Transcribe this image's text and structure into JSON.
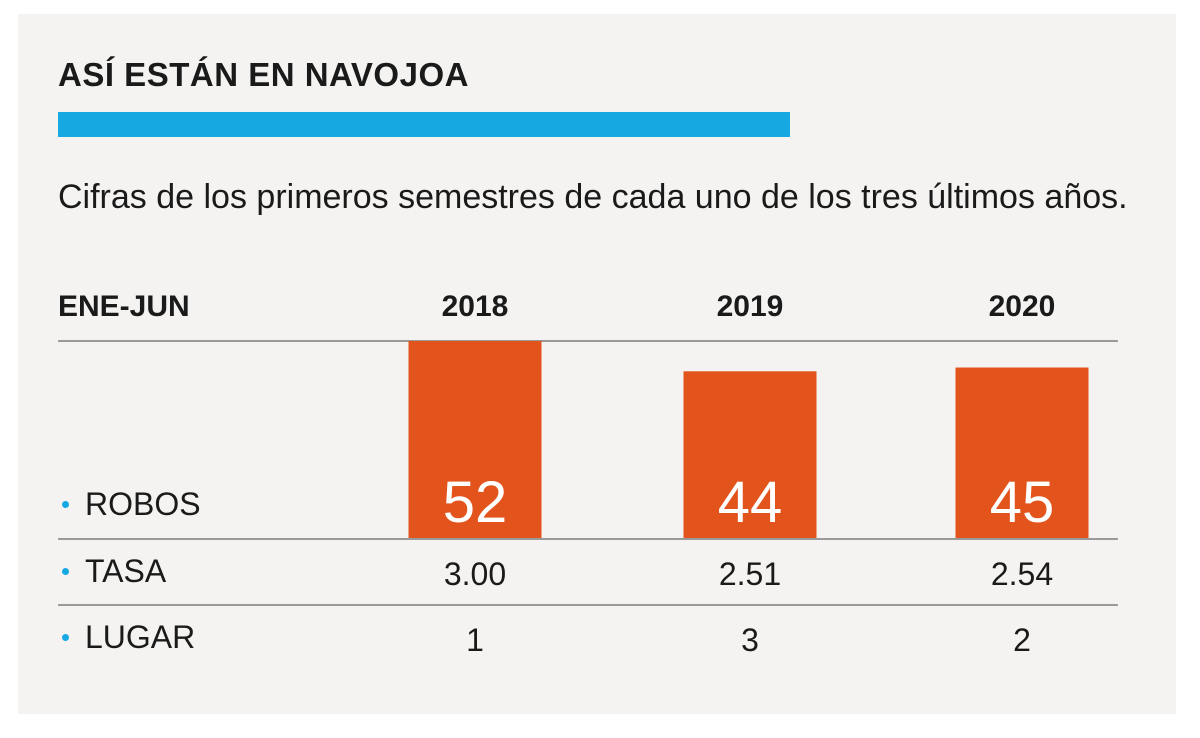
{
  "colors": {
    "bar": "#e2541c",
    "accent": "#16a9e1",
    "bullet": "#16a9e1",
    "bar_label": "#ffffff"
  },
  "chart_data": {
    "type": "bar",
    "title": "ASÍ ESTÁN EN NAVOJOA",
    "subtitle": "Cifras de los primeros semestres de cada uno de los tres últimos años.",
    "header_label": "ENE-JUN",
    "categories": [
      "2018",
      "2019",
      "2020"
    ],
    "series": [
      {
        "name": "ROBOS",
        "values": [
          52,
          44,
          45
        ]
      }
    ],
    "rows": [
      {
        "label": "TASA",
        "values": [
          "3.00",
          "2.51",
          "2.54"
        ]
      },
      {
        "label": "LUGAR",
        "values": [
          "1",
          "3",
          "2"
        ]
      }
    ],
    "ylim": [
      0,
      52
    ],
    "grid": false,
    "legend": "none"
  }
}
